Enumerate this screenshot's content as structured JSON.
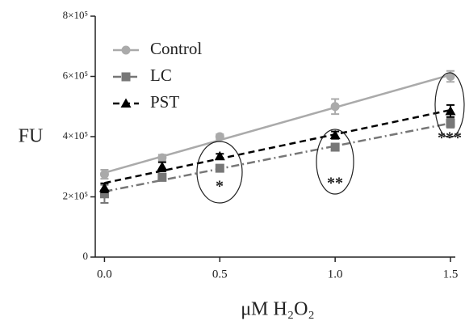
{
  "chart_data": {
    "type": "scatter",
    "xlabel": "μM H₂O₂",
    "ylabel": "FU",
    "x": [
      0,
      0.25,
      0.5,
      1.0,
      1.5
    ],
    "series": [
      {
        "name": "Control",
        "color": "#aaaaaa",
        "marker": "circle",
        "dash": "solid",
        "values": [
          275000,
          330000,
          400000,
          500000,
          600000
        ],
        "errors": [
          15000,
          10000,
          8000,
          25000,
          18000
        ]
      },
      {
        "name": "LC",
        "color": "#777777",
        "marker": "square",
        "dash": "dashdot",
        "values": [
          210000,
          265000,
          295000,
          365000,
          445000
        ],
        "errors": [
          30000,
          12000,
          8000,
          12000,
          15000
        ]
      },
      {
        "name": "PST",
        "color": "#000000",
        "marker": "triangle",
        "dash": "dashed",
        "values": [
          230000,
          300000,
          335000,
          405000,
          485000
        ],
        "errors": [
          15000,
          15000,
          8000,
          12000,
          20000
        ]
      }
    ],
    "annotations": [
      "*",
      "**",
      "***"
    ],
    "xlim": [
      -0.04,
      1.5
    ],
    "ylim": [
      0,
      800000
    ],
    "xticks": [
      {
        "value": 0,
        "label": "0.0"
      },
      0.5,
      {
        "value": 1,
        "label": "1.0"
      },
      1.5
    ],
    "yticks": [
      0,
      {
        "value": 200000,
        "label": "2×10⁵"
      },
      {
        "value": 400000,
        "label": "4×10⁵"
      },
      {
        "value": 600000,
        "label": "6×10⁵"
      },
      {
        "value": 800000,
        "label": "8×10⁵"
      }
    ],
    "legend": "upper-left",
    "grid": false
  }
}
